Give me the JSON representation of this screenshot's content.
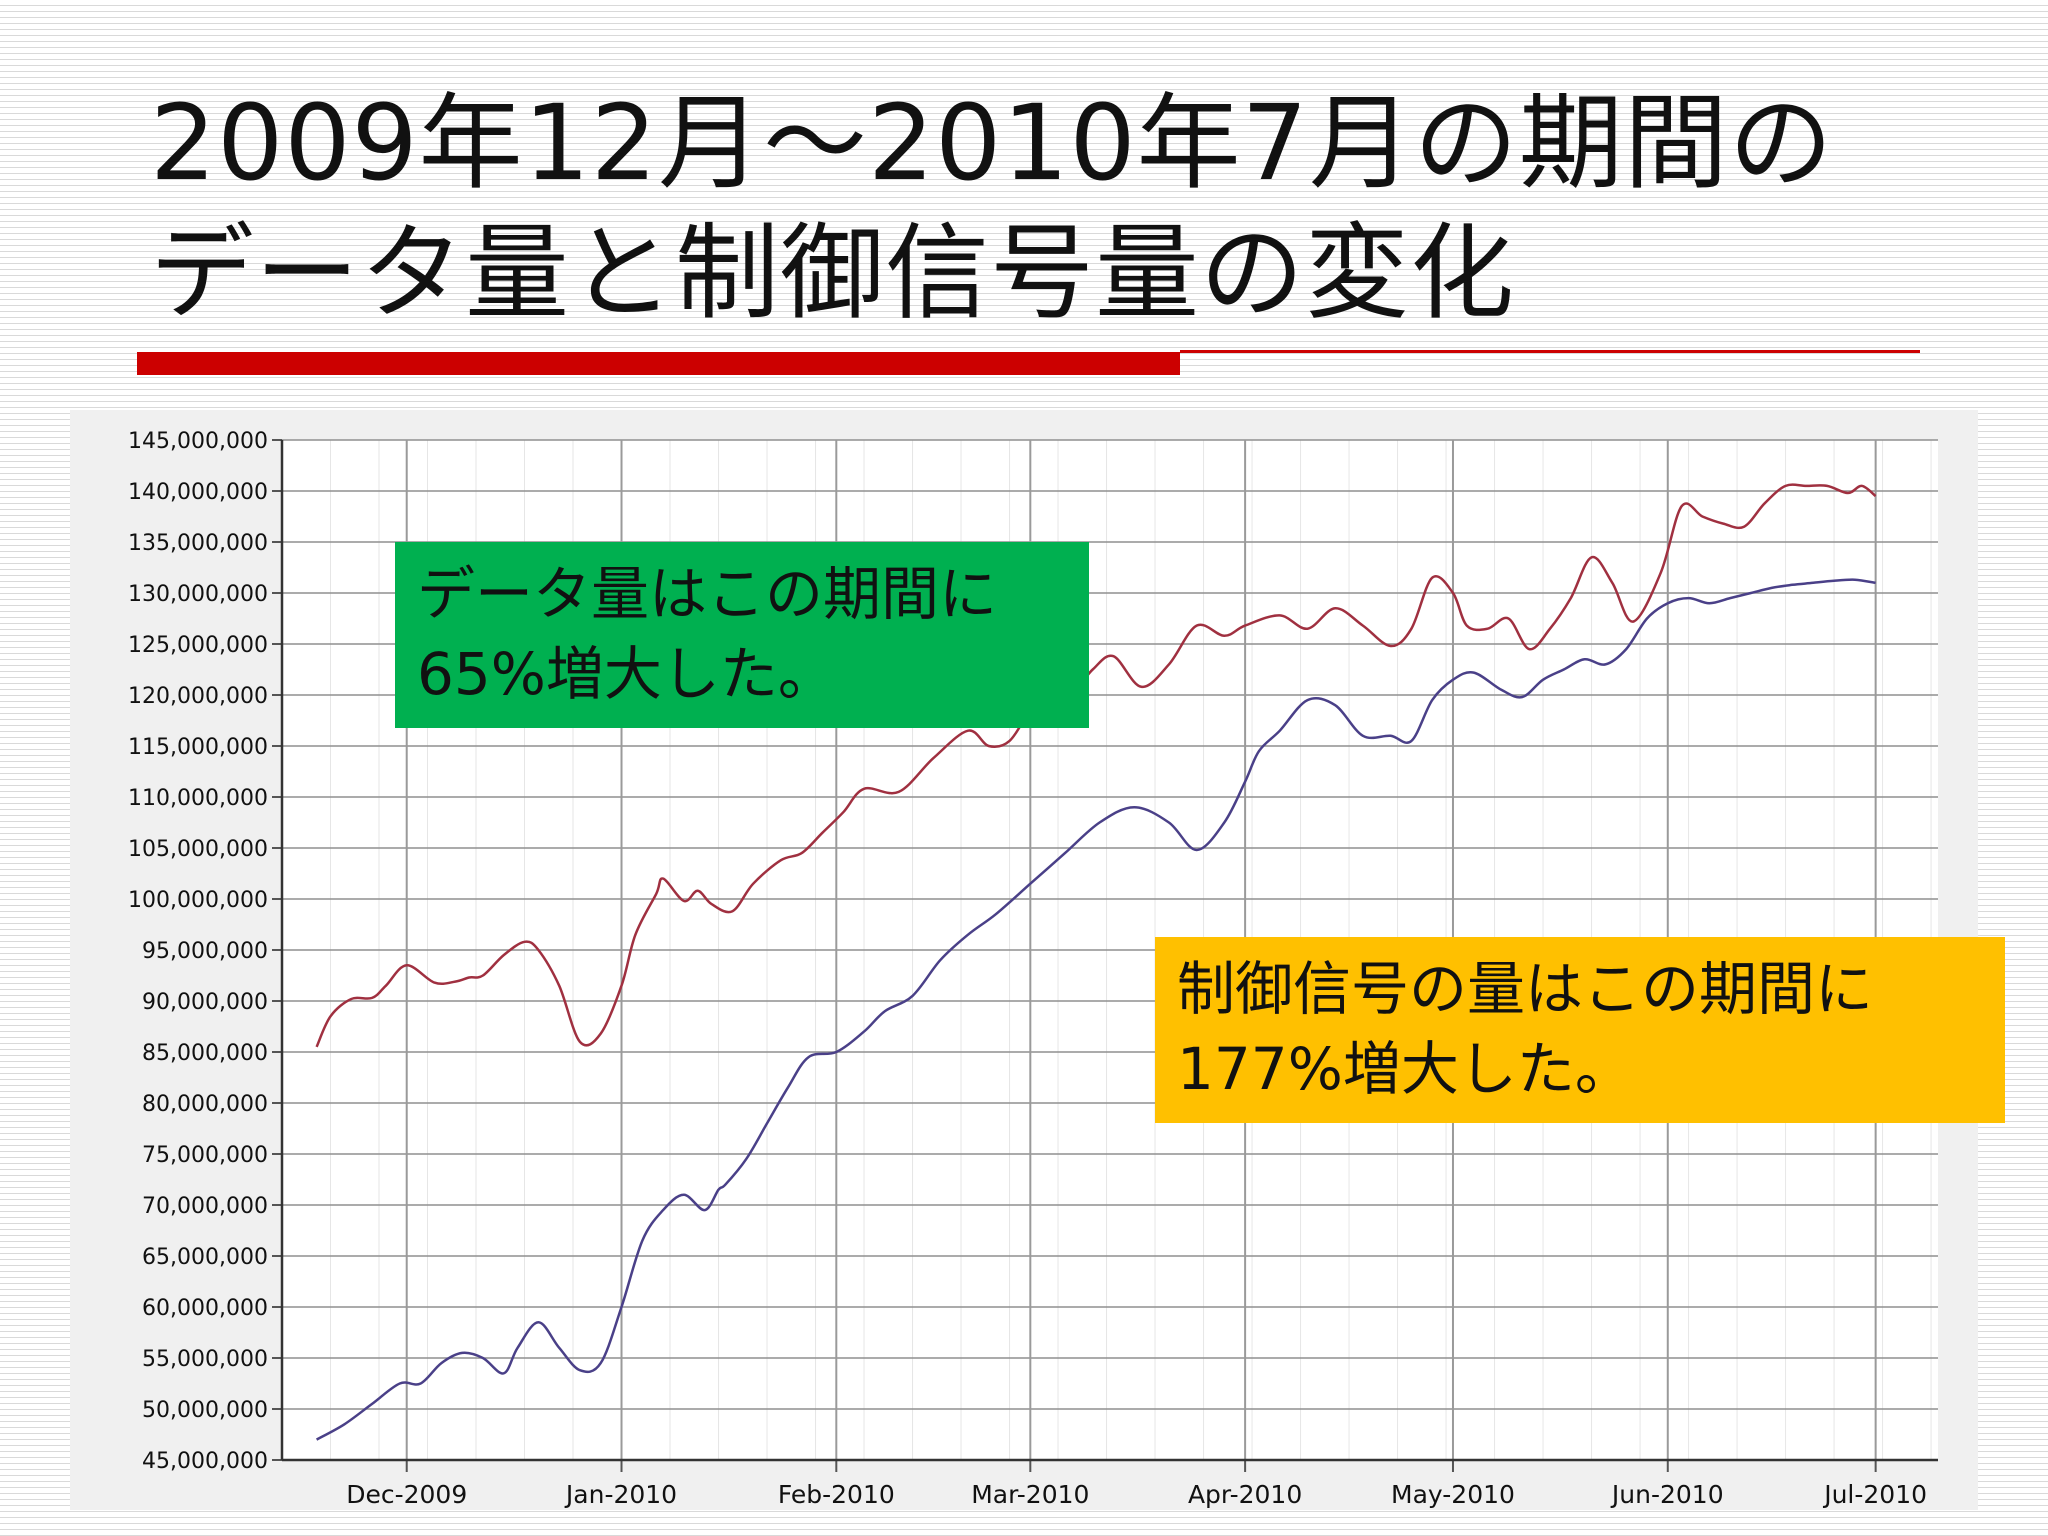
{
  "slide": {
    "title_line1": "2009年12月～2010年7月の期間の",
    "title_line2": "データ量と制御信号量の変化"
  },
  "callouts": {
    "data": {
      "line1": "データ量はこの期間に",
      "line2": "65%増大した。",
      "color": "#00b050"
    },
    "control": {
      "line1": "制御信号の量はこの期間に",
      "line2": "177%増大した。",
      "color": "#ffc000"
    }
  },
  "chart_data": {
    "type": "line",
    "title": "",
    "xlabel": "",
    "ylabel": "",
    "ylim": [
      45000000,
      145000000
    ],
    "yticks": [
      145000000,
      140000000,
      135000000,
      130000000,
      125000000,
      120000000,
      115000000,
      110000000,
      105000000,
      100000000,
      95000000,
      90000000,
      85000000,
      80000000,
      75000000,
      70000000,
      65000000,
      60000000,
      55000000,
      50000000,
      45000000
    ],
    "ytick_labels": [
      "145,000,000",
      "140,000,000",
      "135,000,000",
      "130,000,000",
      "125,000,000",
      "120,000,000",
      "115,000,000",
      "110,000,000",
      "105,000,000",
      "100,000,000",
      "95,000,000",
      "90,000,000",
      "85,000,000",
      "80,000,000",
      "75,000,000",
      "70,000,000",
      "65,000,000",
      "60,000,000",
      "55,000,000",
      "50,000,000",
      "45,000,000"
    ],
    "xlim": [
      "2009-11-13",
      "2010-07-10"
    ],
    "xticks": [
      "2009-12-01",
      "2010-01-01",
      "2010-02-01",
      "2010-03-01",
      "2010-04-01",
      "2010-05-01",
      "2010-06-01",
      "2010-07-01"
    ],
    "xtick_labels": [
      "Dec-2009",
      "Jan-2010",
      "Feb-2010",
      "Mar-2010",
      "Apr-2010",
      "May-2010",
      "Jun-2010",
      "Jul-2010"
    ],
    "grid": true,
    "series": [
      {
        "color": "#a03040",
        "x": [
          "2009-11-18",
          "2009-11-20",
          "2009-11-23",
          "2009-11-26",
          "2009-11-28",
          "2009-12-01",
          "2009-12-05",
          "2009-12-08",
          "2009-12-10",
          "2009-12-12",
          "2009-12-15",
          "2009-12-18",
          "2009-12-20",
          "2009-12-23",
          "2009-12-26",
          "2009-12-29",
          "2010-01-01",
          "2010-01-03",
          "2010-01-06",
          "2010-01-07",
          "2010-01-10",
          "2010-01-12",
          "2010-01-14",
          "2010-01-17",
          "2010-01-20",
          "2010-01-24",
          "2010-01-27",
          "2010-01-30",
          "2010-02-02",
          "2010-02-05",
          "2010-02-10",
          "2010-02-15",
          "2010-02-20",
          "2010-02-23",
          "2010-02-26",
          "2010-03-01",
          "2010-03-04",
          "2010-03-07",
          "2010-03-10",
          "2010-03-13",
          "2010-03-17",
          "2010-03-21",
          "2010-03-25",
          "2010-03-29",
          "2010-04-01",
          "2010-04-06",
          "2010-04-10",
          "2010-04-14",
          "2010-04-18",
          "2010-04-22",
          "2010-04-25",
          "2010-04-28",
          "2010-05-01",
          "2010-05-03",
          "2010-05-06",
          "2010-05-09",
          "2010-05-12",
          "2010-05-15",
          "2010-05-18",
          "2010-05-21",
          "2010-05-24",
          "2010-05-27",
          "2010-05-31",
          "2010-06-03",
          "2010-06-06",
          "2010-06-09",
          "2010-06-12",
          "2010-06-15",
          "2010-06-18",
          "2010-06-21",
          "2010-06-24",
          "2010-06-27",
          "2010-06-29",
          "2010-07-01"
        ],
        "y": [
          85500000,
          88500000,
          90200000,
          90300000,
          91500000,
          93500000,
          91800000,
          91900000,
          92300000,
          92500000,
          94500000,
          95800000,
          95000000,
          91500000,
          86000000,
          86800000,
          91500000,
          96500000,
          100500000,
          102000000,
          99800000,
          100800000,
          99500000,
          98800000,
          101500000,
          103800000,
          104500000,
          106500000,
          108500000,
          110800000,
          110500000,
          113800000,
          116500000,
          115000000,
          115500000,
          118500000,
          120500000,
          120200000,
          122500000,
          123800000,
          120800000,
          123000000,
          126800000,
          125800000,
          126800000,
          127800000,
          126500000,
          128500000,
          126800000,
          124800000,
          126500000,
          131500000,
          130000000,
          126800000,
          126500000,
          127500000,
          124500000,
          126500000,
          129500000,
          133500000,
          131000000,
          127200000,
          132000000,
          138500000,
          137500000,
          136800000,
          136500000,
          138800000,
          140500000,
          140500000,
          140500000,
          139800000,
          140500000,
          139500000
        ]
      },
      {
        "color": "#4a4088",
        "x": [
          "2009-11-18",
          "2009-11-22",
          "2009-11-26",
          "2009-11-30",
          "2009-12-03",
          "2009-12-06",
          "2009-12-09",
          "2009-12-12",
          "2009-12-15",
          "2009-12-17",
          "2009-12-20",
          "2009-12-23",
          "2009-12-26",
          "2009-12-29",
          "2010-01-01",
          "2010-01-04",
          "2010-01-07",
          "2010-01-10",
          "2010-01-13",
          "2010-01-15",
          "2010-01-16",
          "2010-01-19",
          "2010-01-22",
          "2010-01-25",
          "2010-01-28",
          "2010-02-01",
          "2010-02-05",
          "2010-02-08",
          "2010-02-12",
          "2010-02-16",
          "2010-02-20",
          "2010-02-24",
          "2010-03-01",
          "2010-03-06",
          "2010-03-11",
          "2010-03-16",
          "2010-03-21",
          "2010-03-25",
          "2010-03-29",
          "2010-04-01",
          "2010-04-03",
          "2010-04-06",
          "2010-04-10",
          "2010-04-14",
          "2010-04-18",
          "2010-04-22",
          "2010-04-25",
          "2010-04-28",
          "2010-05-01",
          "2010-05-04",
          "2010-05-08",
          "2010-05-11",
          "2010-05-14",
          "2010-05-17",
          "2010-05-20",
          "2010-05-23",
          "2010-05-26",
          "2010-05-29",
          "2010-06-01",
          "2010-06-04",
          "2010-06-07",
          "2010-06-10",
          "2010-06-13",
          "2010-06-16",
          "2010-06-19",
          "2010-06-22",
          "2010-06-25",
          "2010-06-28",
          "2010-07-01"
        ],
        "y": [
          47000000,
          48500000,
          50500000,
          52500000,
          52500000,
          54500000,
          55500000,
          55000000,
          53500000,
          56000000,
          58500000,
          56000000,
          53800000,
          54500000,
          60000000,
          66500000,
          69500000,
          71000000,
          69500000,
          71500000,
          72000000,
          74500000,
          78000000,
          81500000,
          84500000,
          85000000,
          87000000,
          89000000,
          90500000,
          94000000,
          96500000,
          98500000,
          101500000,
          104500000,
          107500000,
          109000000,
          107500000,
          104800000,
          107500000,
          111500000,
          114500000,
          116500000,
          119500000,
          119000000,
          116000000,
          116000000,
          115500000,
          119500000,
          121500000,
          122200000,
          120500000,
          119800000,
          121500000,
          122500000,
          123500000,
          123000000,
          124500000,
          127500000,
          129000000,
          129500000,
          129000000,
          129500000,
          130000000,
          130500000,
          130800000,
          131000000,
          131200000,
          131300000,
          131000000
        ]
      }
    ]
  }
}
